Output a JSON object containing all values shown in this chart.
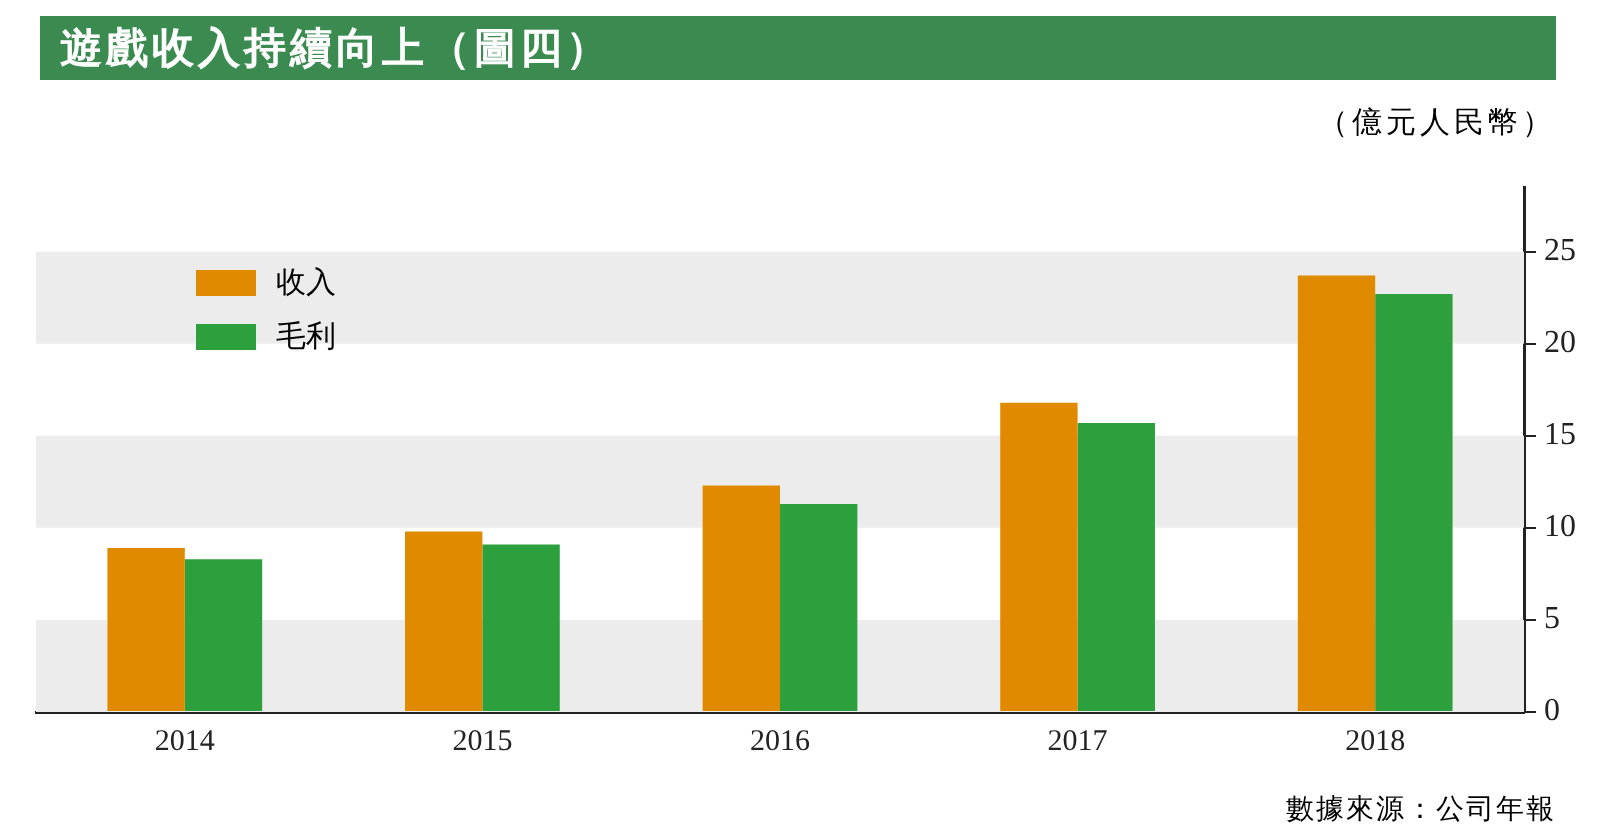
{
  "chart_data": {
    "type": "bar",
    "title": "遊戲收入持續向上（圖四）",
    "ylabel": "（億元人民幣）",
    "annotations": [
      "數據來源：公司年報"
    ],
    "categories": [
      "2014",
      "2015",
      "2016",
      "2017",
      "2018"
    ],
    "series": [
      {
        "name": "收入",
        "color": "#e08a00",
        "values": [
          8.9,
          9.8,
          12.3,
          16.8,
          23.7
        ]
      },
      {
        "name": "毛利",
        "color": "#2ca03c",
        "values": [
          8.3,
          9.1,
          11.3,
          15.7,
          22.7
        ]
      }
    ],
    "ylim": [
      0,
      28.5
    ],
    "yticks": [
      0,
      5,
      10,
      15,
      20,
      25
    ],
    "legend": "top left",
    "bands": [
      {
        "axis": "y",
        "from": 0,
        "to": 5,
        "color": "#ececec"
      },
      {
        "axis": "y",
        "from": 10,
        "to": 15,
        "color": "#ececec"
      },
      {
        "axis": "y",
        "from": 20,
        "to": 25,
        "color": "#ececec"
      }
    ]
  }
}
